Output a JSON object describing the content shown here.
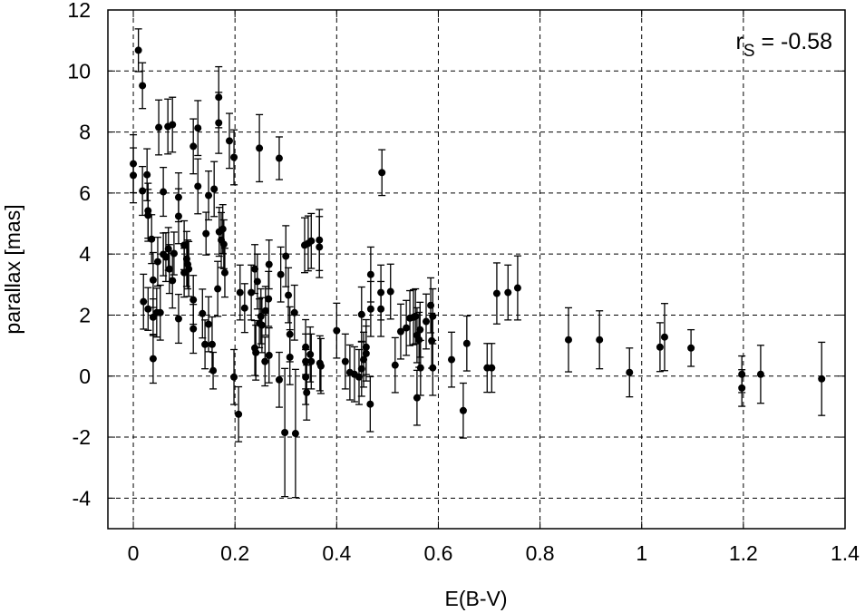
{
  "chart_data": {
    "type": "scatter",
    "xlabel": "E(B-V)",
    "ylabel": "parallax [mas]",
    "annotation": [
      "r",
      "S",
      " = -0.58"
    ],
    "xlim": [
      -0.05,
      1.4
    ],
    "ylim": [
      -5,
      12
    ],
    "xticks": [
      0,
      0.2,
      0.4,
      0.6,
      0.8,
      1,
      1.2,
      1.4
    ],
    "yticks": [
      -4,
      -2,
      0,
      2,
      4,
      6,
      8,
      10,
      12
    ],
    "grid": true,
    "color": "#000000",
    "x": [
      0,
      0,
      0.01,
      0.018,
      0.018,
      0.027,
      0.029,
      0.029,
      0.02,
      0.029,
      0.036,
      0.039,
      0.039,
      0.039,
      0.046,
      0.05,
      0.048,
      0.053,
      0.059,
      0.059,
      0.064,
      0.068,
      0.069,
      0.071,
      0.077,
      0.077,
      0.08,
      0.089,
      0.089,
      0.089,
      0.1,
      0.1,
      0.105,
      0.107,
      0.109,
      0.118,
      0.118,
      0.118,
      0.127,
      0.127,
      0.136,
      0.141,
      0.143,
      0.148,
      0.148,
      0.155,
      0.157,
      0.159,
      0.166,
      0.168,
      0.168,
      0.169,
      0.173,
      0.176,
      0.178,
      0.18,
      0.189,
      0.198,
      0.198,
      0.207,
      0.21,
      0.219,
      0.232,
      0.239,
      0.239,
      0.241,
      0.244,
      0.248,
      0.248,
      0.251,
      0.253,
      0.259,
      0.26,
      0.266,
      0.267,
      0.267,
      0.287,
      0.287,
      0.29,
      0.298,
      0.3,
      0.305,
      0.308,
      0.308,
      0.317,
      0.319,
      0.337,
      0.339,
      0.339,
      0.339,
      0.341,
      0.344,
      0.348,
      0.35,
      0.35,
      0.366,
      0.366,
      0.367,
      0.369,
      0.4,
      0.417,
      0.426,
      0.435,
      0.444,
      0.449,
      0.449,
      0.453,
      0.458,
      0.458,
      0.466,
      0.467,
      0.467,
      0.487,
      0.489,
      0.487,
      0.506,
      0.515,
      0.526,
      0.537,
      0.544,
      0.551,
      0.555,
      0.558,
      0.558,
      0.562,
      0.564,
      0.565,
      0.576,
      0.585,
      0.587,
      0.589,
      0.589,
      0.626,
      0.649,
      0.656,
      0.696,
      0.705,
      0.715,
      0.737,
      0.756,
      0.856,
      0.917,
      0.976,
      1.036,
      1.045,
      1.097,
      1.197,
      1.197,
      1.234,
      1.354
    ],
    "values": [
      6.96,
      6.58,
      10.68,
      9.52,
      6.07,
      6.6,
      5.42,
      5.27,
      2.44,
      2.2,
      4.49,
      0.57,
      1.93,
      3.15,
      2.08,
      8.15,
      3.75,
      2.08,
      6.04,
      3.99,
      3.9,
      8.18,
      4.17,
      3.51,
      8.24,
      3.13,
      4.02,
      1.88,
      5.86,
      5.24,
      4.29,
      3.39,
      3.84,
      3.66,
      3.51,
      7.53,
      2.5,
      1.55,
      8.13,
      6.22,
      2.05,
      1.04,
      4.67,
      5.92,
      1.7,
      1.04,
      0.18,
      6.13,
      2.86,
      9.14,
      8.3,
      4.73,
      4.46,
      4.82,
      4.32,
      3.39,
      7.71,
      7.17,
      -0.03,
      -1.25,
      2.74,
      2.23,
      2.74,
      3.51,
      0.92,
      0.77,
      3.1,
      7.47,
      1.73,
      1.96,
      1.67,
      0.48,
      2.14,
      2.53,
      0.68,
      3.66,
      7.14,
      -0.12,
      3.33,
      -1.85,
      3.93,
      2.65,
      1.37,
      0.62,
      2.08,
      -1.88,
      4.29,
      0.95,
      0.48,
      -0.03,
      -0.54,
      4.35,
      0.71,
      4.43,
      0.48,
      4.46,
      4.23,
      0.42,
      0.33,
      1.49,
      0.48,
      0.12,
      0.06,
      -0.03,
      0.24,
      2.02,
      0.54,
      0.95,
      0.74,
      -0.92,
      3.33,
      2.2,
      2.74,
      6.67,
      2.2,
      2.77,
      0.36,
      1.46,
      1.58,
      1.9,
      1.93,
      1.96,
      1.34,
      -0.71,
      1.19,
      1.52,
      0.27,
      1.79,
      2.32,
      1.16,
      0.27,
      1.96,
      0.54,
      -1.13,
      1.07,
      0.27,
      0.27,
      2.71,
      2.74,
      2.89,
      1.19,
      1.19,
      0.12,
      0.95,
      1.28,
      0.92,
      0.06,
      -0.39,
      0.06,
      -0.09
    ],
    "errors": [
      0.95,
      0.9,
      0.7,
      0.75,
      0.8,
      0.85,
      0.9,
      0.85,
      0.9,
      0.7,
      0.8,
      0.8,
      0.6,
      0.9,
      0.8,
      0.9,
      0.8,
      0.9,
      0.8,
      0.7,
      0.8,
      0.9,
      0.7,
      0.8,
      0.9,
      0.9,
      0.7,
      0.8,
      0.8,
      0.9,
      0.8,
      0.8,
      0.9,
      0.8,
      0.9,
      0.9,
      0.8,
      0.8,
      0.9,
      0.9,
      0.8,
      0.8,
      0.7,
      0.8,
      0.9,
      0.9,
      0.6,
      0.9,
      0.9,
      1.0,
      1.0,
      0.8,
      0.9,
      0.8,
      0.8,
      0.8,
      0.9,
      0.9,
      0.9,
      0.9,
      0.9,
      0.8,
      0.9,
      0.8,
      0.9,
      0.9,
      0.9,
      1.1,
      0.8,
      0.9,
      0.9,
      0.8,
      0.8,
      0.9,
      0.9,
      0.8,
      0.7,
      0.9,
      0.9,
      2.1,
      1.0,
      0.9,
      0.9,
      0.9,
      0.9,
      2.1,
      0.9,
      0.9,
      0.9,
      0.9,
      0.9,
      0.9,
      0.9,
      0.9,
      0.9,
      1.0,
      1.0,
      0.9,
      0.9,
      0.9,
      0.9,
      0.9,
      0.9,
      0.9,
      0.9,
      0.9,
      0.9,
      0.9,
      0.9,
      0.9,
      0.9,
      0.9,
      0.9,
      0.75,
      0.9,
      0.9,
      0.9,
      0.9,
      0.9,
      0.9,
      0.9,
      0.9,
      0.9,
      0.9,
      0.9,
      0.9,
      0.9,
      0.9,
      0.9,
      0.9,
      0.9,
      0.9,
      0.9,
      0.9,
      0.9,
      0.8,
      0.8,
      1.0,
      0.9,
      1.05,
      1.05,
      0.95,
      0.8,
      0.8,
      1.1,
      0.6,
      0.6,
      0.6,
      0.95,
      1.2
    ]
  }
}
